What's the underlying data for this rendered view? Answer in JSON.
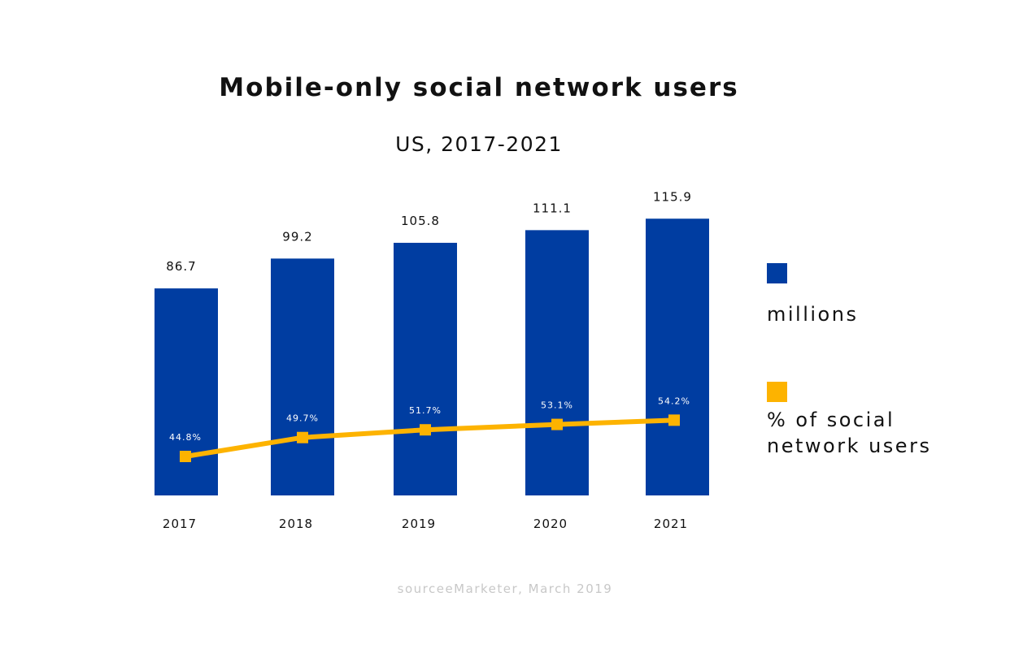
{
  "chart_data": {
    "type": "bar",
    "title": "Mobile-only social network users",
    "subtitle": "US, 2017-2021",
    "categories": [
      "2017",
      "2018",
      "2019",
      "2020",
      "2021"
    ],
    "series": [
      {
        "name": "millions",
        "type": "bar",
        "values": [
          86.7,
          99.2,
          105.8,
          111.1,
          115.9
        ],
        "labels": [
          "86.7",
          "99.2",
          "105.8",
          "111.1",
          "115.9"
        ],
        "color": "#003da1"
      },
      {
        "name": "% of social\nnetwork users",
        "type": "line",
        "values": [
          44.8,
          49.7,
          51.7,
          53.1,
          54.2
        ],
        "labels": [
          "44.8%",
          "49.7%",
          "51.7%",
          "53.1%",
          "54.2%"
        ],
        "color": "#fdb300"
      }
    ],
    "legend_position": "right",
    "grid": false,
    "source": "sourceeMarketer, March 2019"
  }
}
